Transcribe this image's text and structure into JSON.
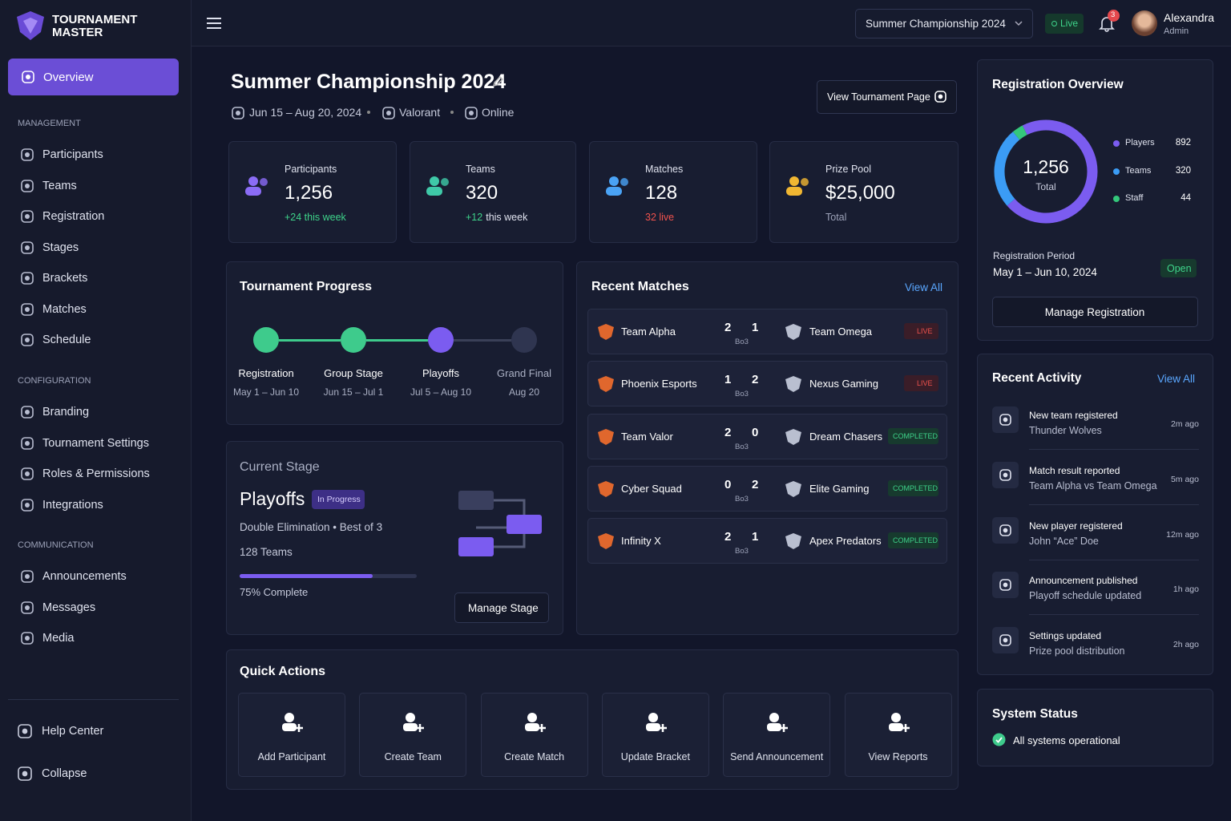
{
  "brand": {
    "line1": "TOURNAMENT",
    "line2": "MASTER"
  },
  "sidebar": {
    "active": "Overview",
    "sections": [
      {
        "title": "MANAGEMENT",
        "items": [
          "Participants",
          "Teams",
          "Registration",
          "Stages",
          "Brackets",
          "Matches",
          "Schedule"
        ]
      },
      {
        "title": "CONFIGURATION",
        "items": [
          "Branding",
          "Tournament Settings",
          "Roles & Permissions",
          "Integrations"
        ]
      },
      {
        "title": "COMMUNICATION",
        "items": [
          "Announcements",
          "Messages",
          "Media"
        ]
      }
    ],
    "footer": [
      "Help Center",
      "Collapse"
    ]
  },
  "topbar": {
    "tournament_select": "Summer Championship 2024",
    "live": "Live",
    "notifications": 3,
    "user": {
      "name": "Alexandra",
      "role": "Admin"
    }
  },
  "header": {
    "title": "Summer Championship 2024",
    "dates": "Jun 15 – Aug 20, 2024",
    "game": "Valorant",
    "mode": "Online",
    "button": "View Tournament Page"
  },
  "stats": [
    {
      "label": "Participants",
      "value": "1,256",
      "sub": [
        {
          "text": "+24 this week",
          "tone": "positive"
        }
      ]
    },
    {
      "label": "Teams",
      "value": "320",
      "sub": [
        {
          "text": "+12",
          "tone": "positive"
        },
        {
          "text": "this week",
          "tone": "default"
        }
      ]
    },
    {
      "label": "Matches",
      "value": "128",
      "sub": [
        {
          "text": "32 live",
          "tone": "negative"
        }
      ]
    },
    {
      "label": "Prize Pool",
      "value": "$25,000",
      "sub": [
        {
          "text": "Total",
          "tone": "muted"
        }
      ]
    }
  ],
  "progress": {
    "title": "Tournament Progress",
    "steps": [
      {
        "name": "Registration",
        "dates": "May 1 – Jun 10",
        "status": "done"
      },
      {
        "name": "Group Stage",
        "dates": "Jun 15 – Jul 1",
        "status": "done"
      },
      {
        "name": "Playoffs",
        "dates": "Jul 5 – Aug 10",
        "status": "current"
      },
      {
        "name": "Grand Final",
        "dates": "Aug 20",
        "status": "upcoming"
      }
    ]
  },
  "current_stage": {
    "heading": "Current Stage",
    "name": "Playoffs",
    "badge": "In Progress",
    "format": "Double Elimination • Best of 3",
    "teams": "128 Teams",
    "progress": 75,
    "progress_label": "75% Complete",
    "button": "Manage Stage"
  },
  "recent_matches": {
    "title": "Recent Matches",
    "view_all": "View All",
    "matches": [
      {
        "team1": "Team Alpha",
        "score1": 2,
        "score2": 1,
        "format": "Bo3",
        "team2": "Team Omega",
        "status": "LIVE"
      },
      {
        "team1": "Phoenix Esports",
        "score1": 1,
        "score2": 2,
        "format": "Bo3",
        "team2": "Nexus Gaming",
        "status": "LIVE"
      },
      {
        "team1": "Team Valor",
        "score1": 2,
        "score2": 0,
        "format": "Bo3",
        "team2": "Dream Chasers",
        "status": "COMPLETED"
      },
      {
        "team1": "Cyber Squad",
        "score1": 0,
        "score2": 2,
        "format": "Bo3",
        "team2": "Elite Gaming",
        "status": "COMPLETED"
      },
      {
        "team1": "Infinity X",
        "score1": 2,
        "score2": 1,
        "format": "Bo3",
        "team2": "Apex Predators",
        "status": "COMPLETED"
      }
    ]
  },
  "quick_actions": {
    "title": "Quick Actions",
    "actions": [
      "Add Participant",
      "Create Team",
      "Create Match",
      "Update Bracket",
      "Send Announcement",
      "View Reports"
    ]
  },
  "registration": {
    "title": "Registration Overview",
    "total": "1,256",
    "total_label": "Total",
    "breakdown": [
      {
        "name": "Players",
        "value": 892,
        "color": "#7b5cf0"
      },
      {
        "name": "Teams",
        "value": 320,
        "color": "#3b9cf5"
      },
      {
        "name": "Staff",
        "value": 44,
        "color": "#34c77b"
      }
    ],
    "period_label": "Registration Period",
    "period": "May 1 – Jun 10, 2024",
    "status": "Open",
    "button": "Manage Registration"
  },
  "activity": {
    "title": "Recent Activity",
    "view_all": "View All",
    "items": [
      {
        "title": "New team registered",
        "detail": "Thunder Wolves",
        "time": "2m ago"
      },
      {
        "title": "Match result reported",
        "detail": "Team Alpha vs Team Omega",
        "time": "5m ago"
      },
      {
        "title": "New player registered",
        "detail": "John “Ace” Doe",
        "time": "12m ago"
      },
      {
        "title": "Announcement published",
        "detail": "Playoff schedule updated",
        "time": "1h ago"
      },
      {
        "title": "Settings updated",
        "detail": "Prize pool distribution",
        "time": "2h ago"
      }
    ]
  },
  "system": {
    "title": "System Status",
    "message": "All systems operational"
  }
}
